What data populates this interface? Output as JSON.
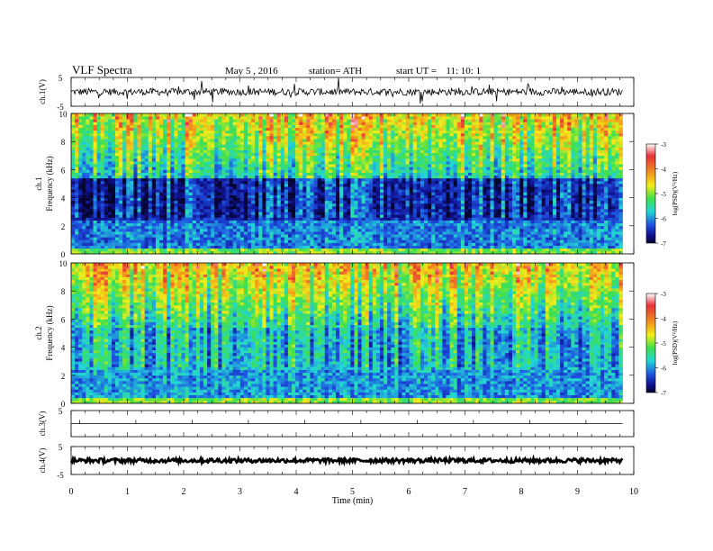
{
  "header": {
    "title": "VLF  Spectra",
    "date": "May 5  , 2016",
    "station": "station= ATH",
    "start_label": "start  UT  =",
    "start_time": "11: 10: 1"
  },
  "chart_data": [
    {
      "type": "line",
      "panel": "ch1-waveform",
      "ylabel": "ch.1(V)",
      "ylim": [
        -5,
        5
      ],
      "yticks": [
        "5",
        "-5"
      ],
      "baseline": 0,
      "noise_amplitude": 0.5,
      "spikes": true,
      "color": "#000000"
    },
    {
      "type": "heatmap",
      "panel": "ch1-spectrogram",
      "ylabel_line1": "ch.1",
      "ylabel_line2": "Frequency  (kHz)",
      "ylim": [
        0,
        10
      ],
      "yticks": [
        "0",
        "2",
        "4",
        "6",
        "8",
        "10"
      ],
      "colorbar": {
        "label": "log(PSD)(V²/Hz)",
        "range": [
          -7,
          -3
        ],
        "ticks": [
          "-3",
          "-4",
          "-5",
          "-6",
          "-7"
        ]
      }
    },
    {
      "type": "heatmap",
      "panel": "ch2-spectrogram",
      "ylabel_line1": "ch.2",
      "ylabel_line2": "Frequency  (kHz)",
      "ylim": [
        0,
        10
      ],
      "yticks": [
        "0",
        "2",
        "4",
        "6",
        "8",
        "10"
      ],
      "colorbar": {
        "label": "log(PSD)(V²/Hz)",
        "range": [
          -7,
          -3
        ],
        "ticks": [
          "-3",
          "-4",
          "-5",
          "-6",
          "-7"
        ]
      }
    },
    {
      "type": "line",
      "panel": "ch3-waveform",
      "ylabel": "ch.3(V)",
      "ylim": [
        -5,
        5
      ],
      "yticks": [
        "5"
      ],
      "baseline": 0,
      "noise_amplitude": 0.0,
      "color": "#000000"
    },
    {
      "type": "line",
      "panel": "ch4-waveform",
      "ylabel": "ch.4(V)",
      "ylim": [
        -5,
        5
      ],
      "yticks": [
        "5",
        "-5"
      ],
      "baseline": 0,
      "noise_amplitude": 0.3,
      "color": "#000000"
    }
  ],
  "xaxis": {
    "label": "Time  (min)",
    "range": [
      0,
      10
    ],
    "data_end": 9.8,
    "ticks": [
      "0",
      "1",
      "2",
      "3",
      "4",
      "5",
      "6",
      "7",
      "8",
      "9",
      "10"
    ]
  }
}
